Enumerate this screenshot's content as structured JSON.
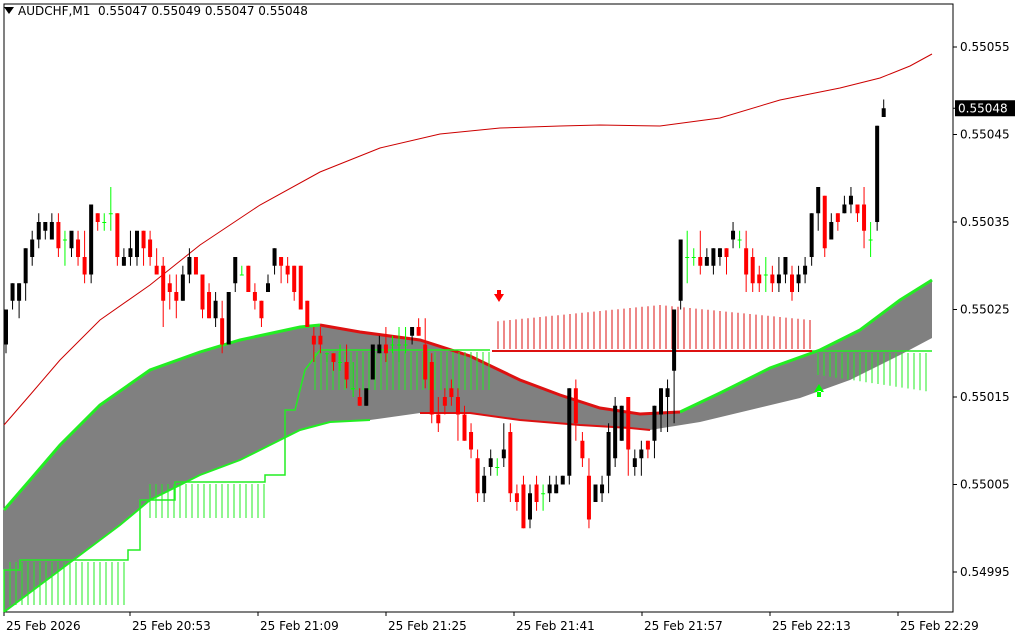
{
  "header": {
    "symbol": "AUDCHF,M1",
    "ohlc": "0.55047 0.55049 0.55047 0.55048"
  },
  "price_axis": {
    "labels": [
      "0.55055",
      "0.55045",
      "0.55035",
      "0.55025",
      "0.55015",
      "0.55005",
      "0.54995"
    ],
    "current_price": "0.55048"
  },
  "time_axis": {
    "labels": [
      "25 Feb 2026",
      "25 Feb 20:53",
      "25 Feb 21:09",
      "25 Feb 21:25",
      "25 Feb 21:41",
      "25 Feb 21:57",
      "25 Feb 22:13",
      "25 Feb 22:29"
    ]
  },
  "colors": {
    "bull": "#000000",
    "bear": "#ff0000",
    "doji": "#00ff00",
    "cloud": "#808080",
    "green_line": "#22ee22",
    "red_line": "#dd1111",
    "ma": "#cc0000",
    "current_price_bg": "#000000"
  },
  "chart_data": {
    "type": "candlestick",
    "symbol": "AUDCHF,M1",
    "y_range": [
      0.5499,
      0.5506
    ],
    "x_labels": [
      "25 Feb 2026",
      "25 Feb 20:53",
      "25 Feb 21:09",
      "25 Feb 21:25",
      "25 Feb 21:41",
      "25 Feb 21:57",
      "25 Feb 22:13",
      "25 Feb 22:29"
    ],
    "y_ticks": [
      0.54995,
      0.55005,
      0.55015,
      0.55025,
      0.55035,
      0.55045,
      0.55055
    ],
    "last_price": 0.55048,
    "candles": [
      [
        0.55021,
        0.55025,
        0.55025,
        0.5502
      ],
      [
        0.55026,
        0.55028,
        0.55028,
        0.55025
      ],
      [
        0.55026,
        0.55028,
        0.55028,
        0.55024
      ],
      [
        0.55028,
        0.55032,
        0.55032,
        0.55026
      ],
      [
        0.55031,
        0.55034,
        0.55033,
        0.5503
      ],
      [
        0.55033,
        0.55036,
        0.55035,
        0.55032
      ],
      [
        0.55034,
        0.55035,
        0.55035,
        0.55033
      ],
      [
        0.55033,
        0.55036,
        0.55035,
        0.55033
      ],
      [
        0.55035,
        0.55036,
        0.55032,
        0.55031
      ],
      [
        0.55033,
        0.55034,
        0.55033,
        0.5503
      ],
      [
        0.55032,
        0.55033,
        0.55034,
        0.55031
      ],
      [
        0.55033,
        0.55034,
        0.55031,
        0.5503
      ],
      [
        0.55031,
        0.55034,
        0.55029,
        0.55028
      ],
      [
        0.55029,
        0.55037,
        0.55037,
        0.55028
      ],
      [
        0.55036,
        0.55036,
        0.55035,
        0.55034
      ],
      [
        0.55035,
        0.55036,
        0.55035,
        0.55034
      ],
      [
        0.55036,
        0.55039,
        0.55036,
        0.55034
      ],
      [
        0.55036,
        0.55036,
        0.55031,
        0.5503
      ],
      [
        0.5503,
        0.55032,
        0.55031,
        0.5503
      ],
      [
        0.55031,
        0.55034,
        0.55032,
        0.5503
      ],
      [
        0.55031,
        0.55033,
        0.55034,
        0.5503
      ],
      [
        0.55034,
        0.55034,
        0.55032,
        0.5503
      ],
      [
        0.55033,
        0.55034,
        0.55031,
        0.5503
      ],
      [
        0.5503,
        0.55032,
        0.55029,
        0.55029
      ],
      [
        0.5503,
        0.55031,
        0.55026,
        0.55023
      ],
      [
        0.55028,
        0.55029,
        0.55027,
        0.55025
      ],
      [
        0.55027,
        0.55029,
        0.55026,
        0.55024
      ],
      [
        0.55026,
        0.5503,
        0.55029,
        0.55026
      ],
      [
        0.55029,
        0.55032,
        0.55031,
        0.55028
      ],
      [
        0.55031,
        0.55031,
        0.55029,
        0.55029
      ],
      [
        0.55029,
        0.55029,
        0.55025,
        0.55024
      ],
      [
        0.55027,
        0.55028,
        0.55024,
        0.55024
      ],
      [
        0.55024,
        0.55027,
        0.55026,
        0.55023
      ],
      [
        0.55024,
        0.55026,
        0.55021,
        0.5502
      ],
      [
        0.55021,
        0.55027,
        0.55027,
        0.55021
      ],
      [
        0.55028,
        0.55031,
        0.55031,
        0.55027
      ],
      [
        0.55029,
        0.5503,
        0.55029,
        0.55029
      ],
      [
        0.5503,
        0.5503,
        0.55027,
        0.55027
      ],
      [
        0.55027,
        0.55028,
        0.55026,
        0.55025
      ],
      [
        0.55026,
        0.55026,
        0.55024,
        0.55023
      ],
      [
        0.55027,
        0.55029,
        0.55028,
        0.55027
      ],
      [
        0.5503,
        0.55032,
        0.55032,
        0.55029
      ],
      [
        0.55031,
        0.55031,
        0.5503,
        0.55028
      ],
      [
        0.5503,
        0.55031,
        0.55029,
        0.55028
      ],
      [
        0.5503,
        0.5503,
        0.55027,
        0.55026
      ],
      [
        0.5503,
        0.5503,
        0.55025,
        0.55025
      ],
      [
        0.55026,
        0.55026,
        0.55023,
        0.55023
      ],
      [
        0.55022,
        0.55023,
        0.55021,
        0.55019
      ],
      [
        0.55022,
        0.55023,
        0.55021,
        0.5502
      ],
      [
        0.5502,
        0.5502,
        0.5502,
        0.55019
      ],
      [
        0.5502,
        0.5502,
        0.55019,
        0.55018
      ],
      [
        0.55019,
        0.55021,
        0.55019,
        0.55018
      ],
      [
        0.55019,
        0.55021,
        0.55017,
        0.55016
      ],
      [
        0.55016,
        0.55019,
        0.55016,
        0.55015
      ],
      [
        0.55015,
        0.55016,
        0.55014,
        0.55014
      ],
      [
        0.55014,
        0.55015,
        0.55016,
        0.55014
      ],
      [
        0.55017,
        0.55021,
        0.55021,
        0.55017
      ],
      [
        0.5502,
        0.55022,
        0.55021,
        0.5502
      ],
      [
        0.55021,
        0.55023,
        0.5502,
        0.55019
      ],
      [
        0.55021,
        0.55022,
        0.55021,
        0.5502
      ],
      [
        0.55021,
        0.55023,
        0.55021,
        0.55019
      ],
      [
        0.55021,
        0.55023,
        0.55021,
        0.5502
      ],
      [
        0.55022,
        0.55023,
        0.55023,
        0.55021
      ],
      [
        0.55023,
        0.55024,
        0.55022,
        0.55022
      ],
      [
        0.55021,
        0.55024,
        0.55017,
        0.55016
      ],
      [
        0.55019,
        0.5502,
        0.55013,
        0.55012
      ],
      [
        0.55013,
        0.55015,
        0.55012,
        0.55011
      ],
      [
        0.55015,
        0.55016,
        0.55014,
        0.55013
      ],
      [
        0.55016,
        0.55017,
        0.55015,
        0.55014
      ],
      [
        0.55015,
        0.55016,
        0.55013,
        0.5501
      ],
      [
        0.55013,
        0.55014,
        0.5501,
        0.5501
      ],
      [
        0.55011,
        0.55012,
        0.55009,
        0.55008
      ],
      [
        0.55008,
        0.55009,
        0.55004,
        0.55003
      ],
      [
        0.55004,
        0.55007,
        0.55006,
        0.55003
      ],
      [
        0.55007,
        0.55009,
        0.55008,
        0.55006
      ],
      [
        0.55007,
        0.55008,
        0.55007,
        0.55006
      ],
      [
        0.55008,
        0.55012,
        0.55009,
        0.55007
      ],
      [
        0.55011,
        0.55012,
        0.55004,
        0.55003
      ],
      [
        0.55004,
        0.55005,
        0.55003,
        0.55002
      ],
      [
        0.55005,
        0.55006,
        0.55,
        0.55
      ],
      [
        0.55001,
        0.55005,
        0.55004,
        0.55
      ],
      [
        0.55005,
        0.55006,
        0.55003,
        0.55002
      ],
      [
        0.55004,
        0.55005,
        0.55004,
        0.55002
      ],
      [
        0.55004,
        0.55006,
        0.55005,
        0.55003
      ],
      [
        0.55004,
        0.55006,
        0.55005,
        0.55004
      ],
      [
        0.55005,
        0.55006,
        0.55006,
        0.55005
      ],
      [
        0.55006,
        0.55016,
        0.55016,
        0.55005
      ],
      [
        0.55016,
        0.55017,
        0.55012,
        0.5501
      ],
      [
        0.5501,
        0.55011,
        0.55008,
        0.55007
      ],
      [
        0.55006,
        0.55008,
        0.55001,
        0.55
      ],
      [
        0.55003,
        0.55005,
        0.55005,
        0.55003
      ],
      [
        0.55004,
        0.55006,
        0.55005,
        0.55003
      ],
      [
        0.55006,
        0.55012,
        0.55011,
        0.55004
      ],
      [
        0.55008,
        0.55015,
        0.55014,
        0.55007
      ],
      [
        0.5501,
        0.55014,
        0.55014,
        0.5501
      ],
      [
        0.55015,
        0.55015,
        0.55009,
        0.55006
      ],
      [
        0.55007,
        0.55009,
        0.55008,
        0.55006
      ],
      [
        0.55008,
        0.5501,
        0.55009,
        0.55006
      ],
      [
        0.5501,
        0.5501,
        0.55009,
        0.55008
      ],
      [
        0.5501,
        0.55014,
        0.55014,
        0.55008
      ],
      [
        0.55013,
        0.55016,
        0.55016,
        0.55011
      ],
      [
        0.55015,
        0.55017,
        0.55016,
        0.55011
      ],
      [
        0.55018,
        0.55025,
        0.55025,
        0.55012
      ],
      [
        0.55026,
        0.55033,
        0.55033,
        0.55025
      ],
      [
        0.55031,
        0.55034,
        0.55031,
        0.55028
      ],
      [
        0.55031,
        0.55032,
        0.55031,
        0.5503
      ],
      [
        0.55031,
        0.55034,
        0.5503,
        0.55029
      ],
      [
        0.5503,
        0.55032,
        0.55031,
        0.5503
      ],
      [
        0.5503,
        0.55032,
        0.55032,
        0.55029
      ],
      [
        0.55031,
        0.55032,
        0.55032,
        0.5503
      ],
      [
        0.55032,
        0.55032,
        0.55031,
        0.55029
      ],
      [
        0.55033,
        0.55035,
        0.55034,
        0.55032
      ],
      [
        0.55033,
        0.55034,
        0.55033,
        0.55032
      ],
      [
        0.55032,
        0.55034,
        0.55029,
        0.55027
      ],
      [
        0.55031,
        0.55032,
        0.55028,
        0.55027
      ],
      [
        0.55029,
        0.5503,
        0.55028,
        0.55027
      ],
      [
        0.55029,
        0.55031,
        0.55029,
        0.55027
      ],
      [
        0.55029,
        0.5503,
        0.55028,
        0.55027
      ],
      [
        0.55028,
        0.55031,
        0.55029,
        0.55027
      ],
      [
        0.55029,
        0.55031,
        0.55031,
        0.55028
      ],
      [
        0.55029,
        0.5503,
        0.55027,
        0.55026
      ],
      [
        0.55028,
        0.5503,
        0.55029,
        0.55027
      ],
      [
        0.55029,
        0.55031,
        0.5503,
        0.55028
      ],
      [
        0.55031,
        0.55036,
        0.55036,
        0.5503
      ],
      [
        0.55036,
        0.55039,
        0.55039,
        0.55034
      ],
      [
        0.55038,
        0.55038,
        0.55032,
        0.55031
      ],
      [
        0.55033,
        0.55036,
        0.55035,
        0.55033
      ],
      [
        0.55036,
        0.55036,
        0.55035,
        0.55034
      ],
      [
        0.55036,
        0.55038,
        0.55037,
        0.55036
      ],
      [
        0.55037,
        0.55039,
        0.55038,
        0.55036
      ],
      [
        0.55037,
        0.55037,
        0.55036,
        0.55035
      ],
      [
        0.55037,
        0.55039,
        0.55034,
        0.55032
      ],
      [
        0.55033,
        0.55035,
        0.55033,
        0.55031
      ],
      [
        0.55035,
        0.55046,
        0.55046,
        0.55034
      ],
      [
        0.55047,
        0.55049,
        0.55048,
        0.55047
      ]
    ]
  }
}
